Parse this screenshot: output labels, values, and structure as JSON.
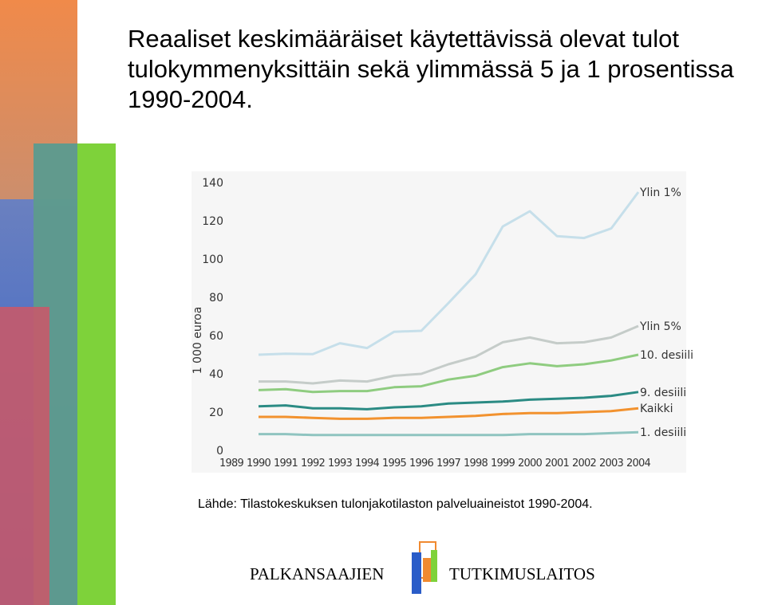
{
  "title": "Reaaliset keskimääräiset käytettävissä olevat tulot tulokymmenyksittäin sekä ylimmässä 5 ja 1 prosentissa 1990-2004.",
  "source": "Lähde: Tilastokeskuksen tulonjakotilaston palveluaineistot 1990-2004.",
  "footer": {
    "left": "PALKANSAAJIEN",
    "right": "TUTKIMUSLAITOS"
  },
  "chart_data": {
    "type": "line",
    "y_label": "1 000 euroa",
    "x": [
      1990,
      1991,
      1992,
      1993,
      1994,
      1995,
      1996,
      1997,
      1998,
      1999,
      2000,
      2001,
      2002,
      2003,
      2004
    ],
    "xlim": [
      1989,
      2004
    ],
    "xticks": [
      1989,
      1990,
      1991,
      1992,
      1993,
      1994,
      1995,
      1996,
      1997,
      1998,
      1999,
      2000,
      2001,
      2002,
      2003,
      2004
    ],
    "ylim": [
      0,
      140
    ],
    "yticks": [
      0,
      20,
      40,
      60,
      80,
      100,
      120,
      140
    ],
    "grid": false,
    "series": [
      {
        "name": "Ylin 1%",
        "color": "#c6dfea",
        "values": [
          50,
          50.5,
          50.3,
          56,
          53.5,
          62,
          62.5,
          77,
          92,
          117,
          125,
          112,
          111,
          116,
          135
        ]
      },
      {
        "name": "Ylin 5%",
        "color": "#c5ccc9",
        "values": [
          36,
          36,
          35,
          36.5,
          36,
          39,
          40,
          45,
          49,
          56.5,
          59,
          56,
          56.5,
          59,
          65
        ]
      },
      {
        "name": "10. desiili",
        "color": "#8fcc80",
        "values": [
          31.5,
          32,
          30.5,
          31,
          31,
          33,
          33.5,
          37,
          39,
          43.5,
          45.5,
          44,
          45,
          47,
          50
        ]
      },
      {
        "name": "9. desiili",
        "color": "#2b8b84",
        "values": [
          23,
          23.5,
          22,
          22,
          21.5,
          22.5,
          23,
          24.5,
          25,
          25.5,
          26.5,
          27,
          27.5,
          28.5,
          30.5
        ]
      },
      {
        "name": "Kaikki",
        "color": "#f2922f",
        "values": [
          17.5,
          17.5,
          17,
          16.5,
          16.5,
          17,
          17,
          17.5,
          18,
          19,
          19.5,
          19.5,
          20,
          20.5,
          22
        ]
      },
      {
        "name": "1. desiili",
        "color": "#8fc4c0",
        "values": [
          8.5,
          8.5,
          8,
          8,
          8,
          8,
          8,
          8,
          8,
          8,
          8.5,
          8.5,
          8.5,
          9,
          9.5
        ]
      }
    ]
  }
}
